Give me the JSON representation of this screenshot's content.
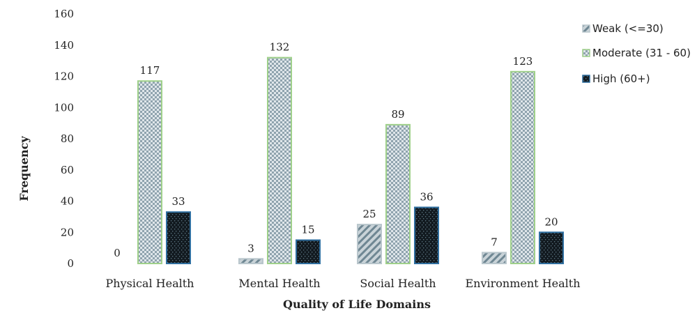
{
  "chart_data": {
    "type": "bar",
    "title": "",
    "xlabel": "Quality of Life Domains",
    "ylabel": "Frequency",
    "ylim": [
      0,
      160
    ],
    "yticks": [
      0,
      20,
      40,
      60,
      80,
      100,
      120,
      140,
      160
    ],
    "grid": false,
    "legend_position": "top-right",
    "categories": [
      "Physical Health",
      "Mental Health",
      "Social Health",
      "Environment Health"
    ],
    "series": [
      {
        "name": "Weak (<=30)",
        "values": [
          0,
          3,
          25,
          7
        ],
        "color": "#7a8d96",
        "pattern": "diagonal-stripes"
      },
      {
        "name": "Moderate (31 - 60)",
        "values": [
          117,
          132,
          89,
          123
        ],
        "color": "#8fbf7a",
        "pattern": "checker"
      },
      {
        "name": "High (60+)",
        "values": [
          33,
          15,
          36,
          20
        ],
        "color": "#2f6b95",
        "pattern": "dots-dark"
      }
    ],
    "data_labels": [
      [
        "0",
        "3",
        "25",
        "7"
      ],
      [
        "117",
        "132",
        "89",
        "123"
      ],
      [
        "33",
        "15",
        "36",
        "20"
      ]
    ]
  }
}
